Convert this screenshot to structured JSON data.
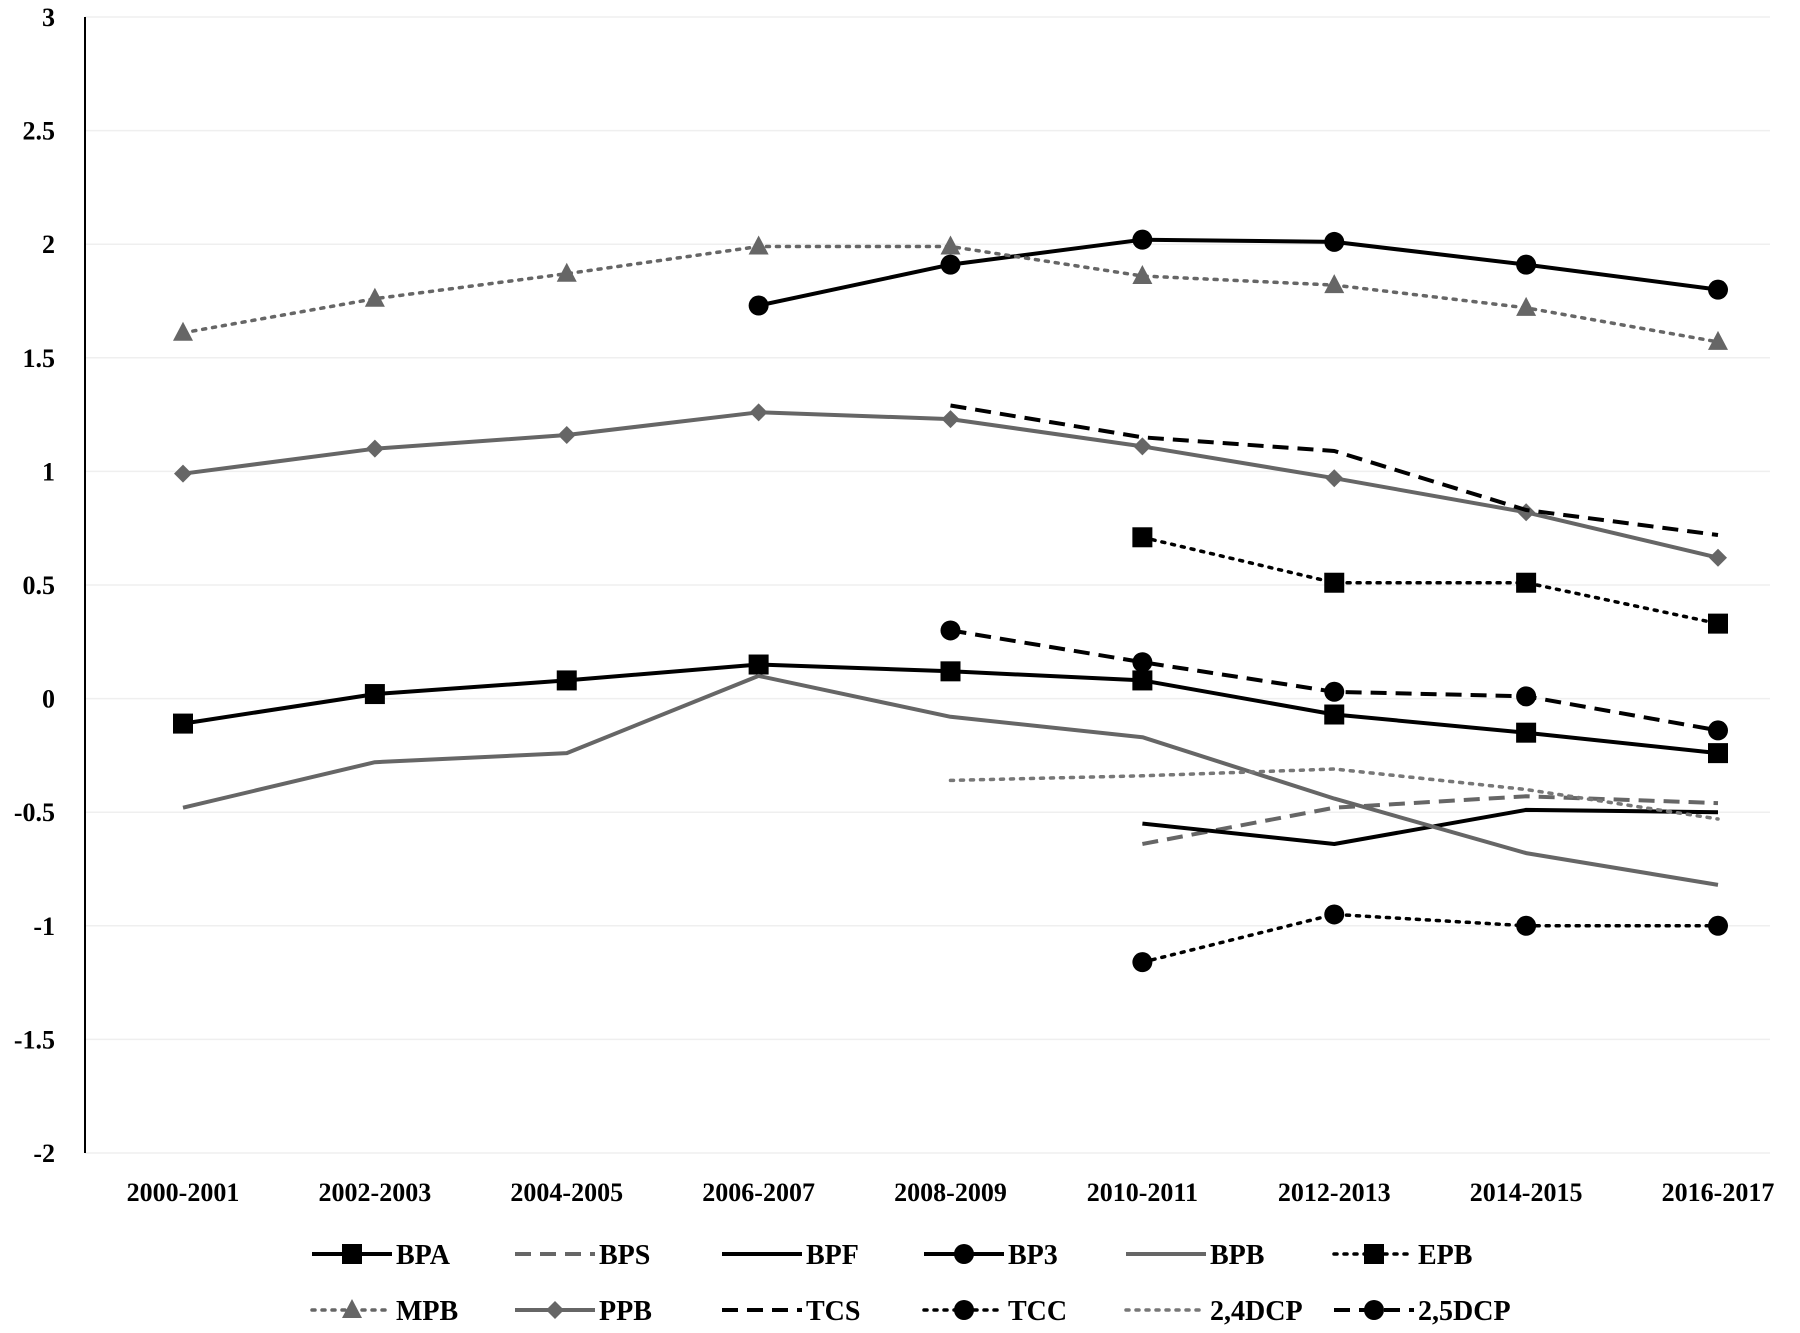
{
  "chart_data": {
    "type": "line",
    "title": "",
    "xlabel": "",
    "ylabel": "",
    "ylim": [
      -2,
      3
    ],
    "yticks": [
      "3",
      "2.5",
      "2",
      "1.5",
      "1",
      "0.5",
      "0",
      "-0.5",
      "-1",
      "-1.5",
      "-2"
    ],
    "ytick_values": [
      3,
      2.5,
      2,
      1.5,
      1,
      0.5,
      0,
      -0.5,
      -1,
      -1.5,
      -2
    ],
    "categories": [
      "2000-2001",
      "2002-2003",
      "2004-2005",
      "2006-2007",
      "2008-2009",
      "2010-2011",
      "2012-2013",
      "2014-2015",
      "2016-2017"
    ],
    "grid": true,
    "legend_position": "bottom",
    "series": [
      {
        "name": "BPA",
        "color": "#000000",
        "dash": "solid",
        "marker": "square",
        "values": [
          -0.11,
          0.02,
          0.08,
          0.15,
          0.12,
          0.08,
          -0.07,
          -0.15,
          -0.24
        ]
      },
      {
        "name": "BPS",
        "color": "#666666",
        "dash": "dashed",
        "marker": "none",
        "values": [
          null,
          null,
          null,
          null,
          null,
          -0.64,
          -0.48,
          -0.43,
          -0.46
        ]
      },
      {
        "name": "BPF",
        "color": "#000000",
        "dash": "solid",
        "marker": "none",
        "values": [
          null,
          null,
          null,
          null,
          null,
          -0.55,
          -0.64,
          -0.49,
          -0.5
        ]
      },
      {
        "name": "BP3",
        "color": "#000000",
        "dash": "solid",
        "marker": "circle",
        "values": [
          null,
          null,
          null,
          1.73,
          1.91,
          2.02,
          2.01,
          1.91,
          1.8
        ]
      },
      {
        "name": "BPB",
        "color": "#666666",
        "dash": "solid",
        "marker": "none",
        "values": [
          -0.48,
          -0.28,
          -0.24,
          0.1,
          -0.08,
          -0.17,
          -0.44,
          -0.68,
          -0.82
        ]
      },
      {
        "name": "EPB",
        "color": "#000000",
        "dash": "dotted",
        "marker": "square",
        "values": [
          null,
          null,
          null,
          null,
          null,
          0.71,
          0.51,
          0.51,
          0.33
        ]
      },
      {
        "name": "MPB",
        "color": "#666666",
        "dash": "dotted",
        "marker": "triangle",
        "values": [
          1.61,
          1.76,
          1.87,
          1.99,
          1.99,
          1.86,
          1.82,
          1.72,
          1.57
        ]
      },
      {
        "name": "PPB",
        "color": "#666666",
        "dash": "solid",
        "marker": "diamond",
        "values": [
          0.99,
          1.1,
          1.16,
          1.26,
          1.23,
          1.11,
          0.97,
          0.82,
          0.62
        ]
      },
      {
        "name": "TCS",
        "color": "#000000",
        "dash": "dashed",
        "marker": "none",
        "values": [
          null,
          null,
          null,
          null,
          1.29,
          1.15,
          1.09,
          0.83,
          0.72
        ]
      },
      {
        "name": "TCC",
        "color": "#000000",
        "dash": "dotted",
        "marker": "circle",
        "values": [
          null,
          null,
          null,
          null,
          null,
          -1.16,
          -0.95,
          -1.0,
          -1.0
        ]
      },
      {
        "name": "2,4DCP",
        "color": "#777777",
        "dash": "dotted",
        "marker": "none",
        "values": [
          null,
          null,
          null,
          null,
          -0.36,
          -0.34,
          -0.31,
          -0.4,
          -0.53
        ]
      },
      {
        "name": "2,5DCP",
        "color": "#000000",
        "dash": "dashed",
        "marker": "circle",
        "values": [
          null,
          null,
          null,
          null,
          0.3,
          0.16,
          0.03,
          0.01,
          -0.14
        ]
      }
    ]
  }
}
